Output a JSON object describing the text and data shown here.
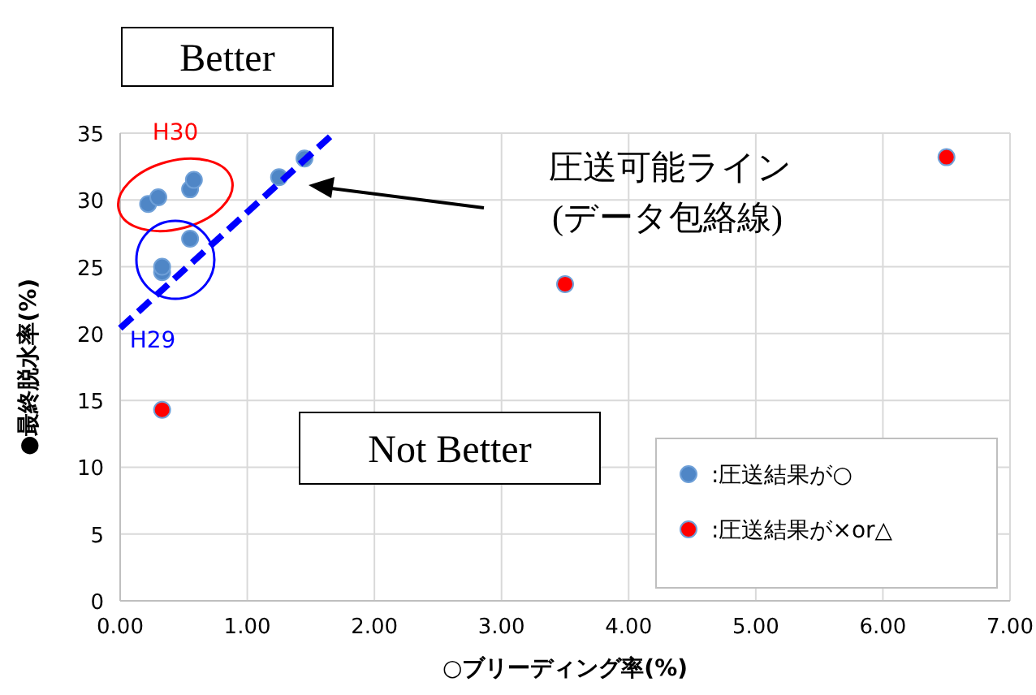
{
  "chart_data": {
    "type": "scatter",
    "xlabel": "○ブリーディング率(%)",
    "ylabel": "●最終脱水率(%)",
    "xlim": [
      0,
      7
    ],
    "ylim": [
      0,
      35
    ],
    "xticks": [
      {
        "value": 0,
        "label": "0.00"
      },
      {
        "value": 1,
        "label": "1.00"
      },
      {
        "value": 2,
        "label": "2.00"
      },
      {
        "value": 3,
        "label": "3.00"
      },
      {
        "value": 4,
        "label": "4.00"
      },
      {
        "value": 5,
        "label": "5.00"
      },
      {
        "value": 6,
        "label": "6.00"
      },
      {
        "value": 7,
        "label": "7.00"
      }
    ],
    "yticks": [
      0,
      5,
      10,
      15,
      20,
      25,
      30,
      35
    ],
    "grid": true,
    "legend": "bottom right",
    "marker": "circle",
    "series": [
      {
        "name": ":圧送結果が○",
        "color": "#4f86c6",
        "x": [
          0.22,
          0.3,
          0.55,
          0.58,
          1.25,
          1.45,
          0.55,
          0.33,
          0.33
        ],
        "values": [
          29.7,
          30.2,
          30.8,
          31.5,
          31.7,
          33.1,
          27.1,
          24.6,
          25.0
        ]
      },
      {
        "name": ":圧送結果が×or△",
        "color": "#ff0000",
        "x": [
          0.33,
          3.5,
          6.5
        ],
        "values": [
          14.3,
          23.7,
          33.2
        ]
      },
      {
        "type": "line",
        "color": "#0000ff",
        "line_style": "dashed",
        "marker": "none",
        "x": [
          0,
          1.67
        ],
        "values": [
          20.4,
          34.9
        ]
      }
    ],
    "annotations": [
      "Better",
      "Not Better",
      "H30",
      "H29",
      "圧送可能ライン",
      "(データ包絡線)"
    ]
  }
}
